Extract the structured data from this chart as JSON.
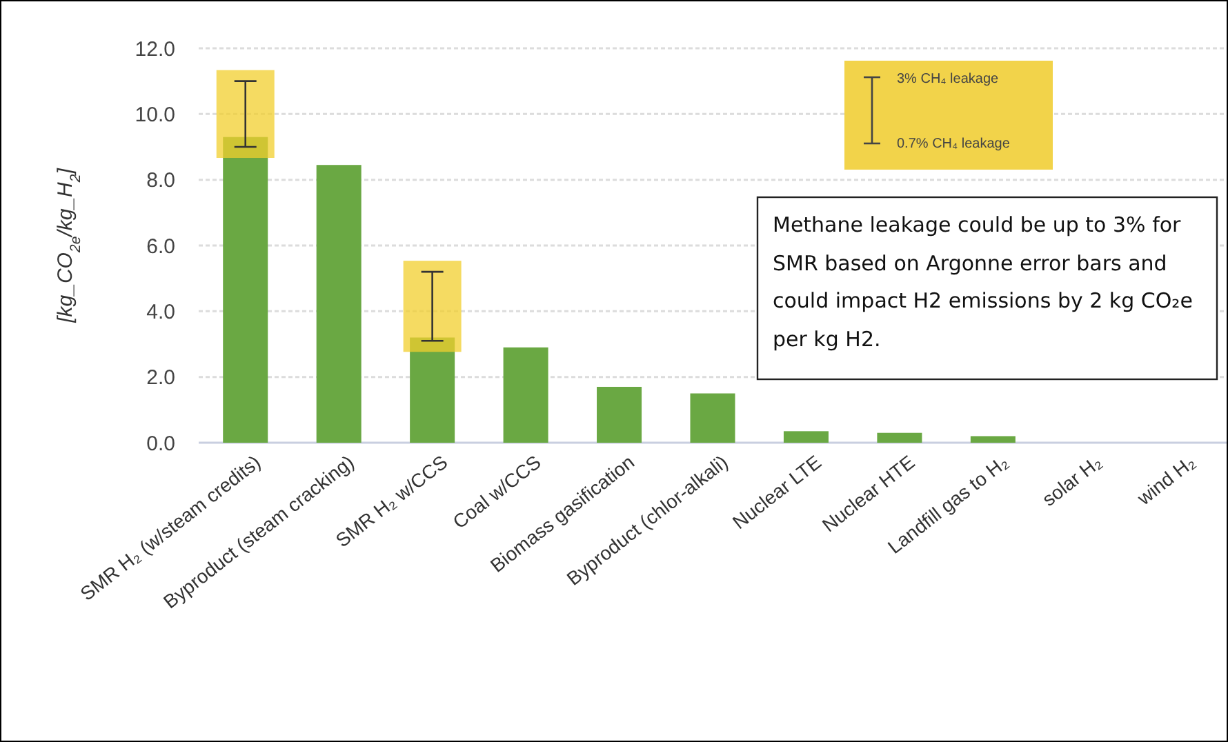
{
  "chart_data": {
    "type": "bar",
    "ylabel": "[kg_CO$_{2e}$/kg_H$_{2}$]",
    "categories": [
      "SMR H₂ (w/steam credits)",
      "Byproduct (steam cracking)",
      "SMR H₂ w/CCS",
      "Coal w/CCS",
      "Biomass gasification",
      "Byproduct (chlor-alkali)",
      "Nuclear LTE",
      "Nuclear HTE",
      "Landfill gas to H₂",
      "solar H₂",
      "wind H₂"
    ],
    "values": [
      9.3,
      8.45,
      3.2,
      2.9,
      1.7,
      1.5,
      0.35,
      0.3,
      0.2,
      0,
      0
    ],
    "errors": [
      [
        9.0,
        11.0
      ],
      null,
      [
        3.1,
        5.2
      ],
      null,
      null,
      null,
      null,
      null,
      null,
      null,
      null
    ],
    "color": "#6aa843",
    "ylim": [
      0,
      12
    ],
    "yticks": [
      {
        "value": 0,
        "label": "0.0"
      },
      {
        "value": 2,
        "label": "2.0"
      },
      {
        "value": 4,
        "label": "4.0"
      },
      {
        "value": 6,
        "label": "6.0"
      },
      {
        "value": 8,
        "label": "8.0"
      },
      {
        "value": 10,
        "label": "10.0"
      },
      {
        "value": 12,
        "label": "12.0"
      }
    ],
    "grid": "y",
    "annotations": [
      "3% CH₄ leakage",
      "0.7% CH₄ leakage",
      "Methane leakage could be up to 3% for SMR based on Argonne error bars and could impact H2 emissions by 2 kg CO₂e per kg H2."
    ]
  }
}
